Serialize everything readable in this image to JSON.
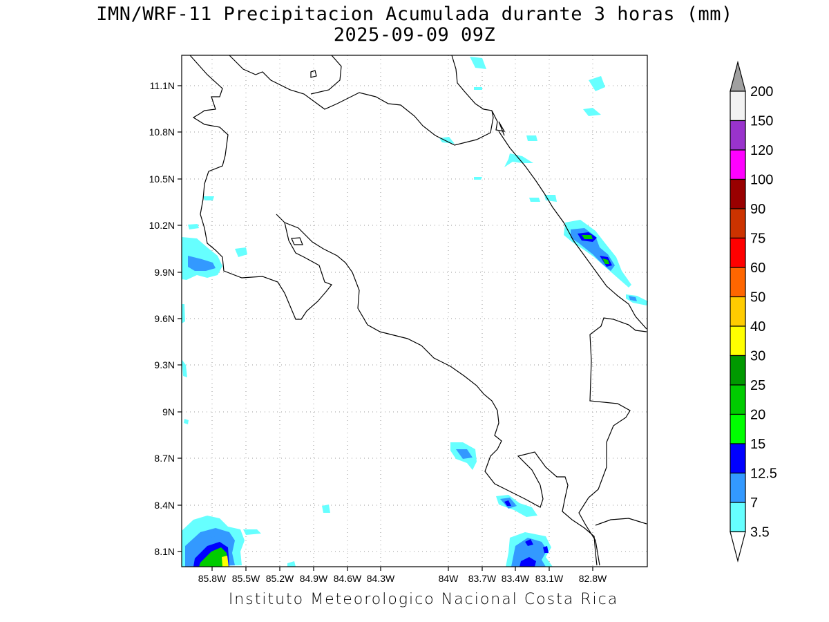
{
  "title_line1": "IMN/WRF-11 Precipitacion Acumulada durante 3 horas (mm)",
  "title_line2": "2025-09-09 09Z",
  "footer": "Instituto Meteorologico Nacional Costa Rica",
  "lat_labels": [
    "11.1N",
    "10.8N",
    "10.5N",
    "10.2N",
    "9.9N",
    "9.6N",
    "9.3N",
    "9N",
    "8.7N",
    "8.4N",
    "8.1N"
  ],
  "lon_labels": [
    "85.8W",
    "85.5W",
    "85.2W",
    "84.9W",
    "84.6W",
    "84.3W",
    "84W",
    "83.7W",
    "83.4W",
    "83.1W",
    "82.8W"
  ],
  "colorbar": {
    "labels": [
      "200",
      "150",
      "120",
      "100",
      "90",
      "75",
      "60",
      "50",
      "40",
      "30",
      "25",
      "20",
      "15",
      "12.5",
      "7",
      "3.5"
    ],
    "colors": [
      "#a0a0a0",
      "#f2f2f2",
      "#9933cc",
      "#ff00ff",
      "#990000",
      "#cc3300",
      "#ff0000",
      "#ff6600",
      "#ffcc00",
      "#ffff00",
      "#009900",
      "#00cc00",
      "#00ff00",
      "#0000ff",
      "#3399ff",
      "#66ffff",
      "#ffffff"
    ]
  },
  "colors": {
    "cyan": "#66ffff",
    "lightblue": "#3399ff",
    "blue": "#0000ff",
    "green": "#00cc00",
    "darkgreen": "#009900",
    "yellow": "#ffff00"
  }
}
